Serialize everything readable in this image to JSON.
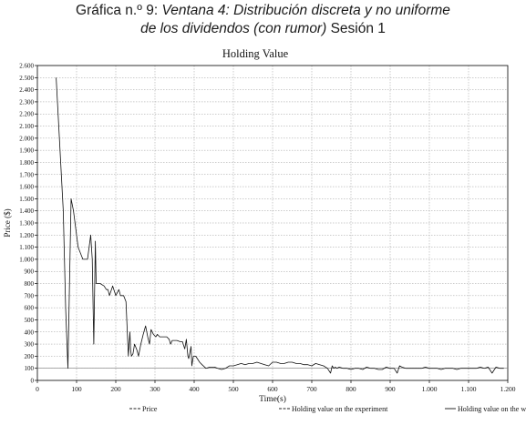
{
  "figure": {
    "line1_prefix": "Gráfica n.º 9: ",
    "line1_italic": "Ventana 4: Distribución discreta y no uniforme",
    "line2_italic": "de los dividendos (con rumor)",
    "line2_suffix": " Sesión 1"
  },
  "chart_data": {
    "type": "line",
    "title": "Holding Value",
    "xlabel": "Time(s)",
    "ylabel": "Price ($)",
    "xlim": [
      0,
      1200
    ],
    "ylim": [
      0,
      2600
    ],
    "grid": true,
    "legend_position": "bottom",
    "x_ticks": [
      0,
      100,
      200,
      300,
      400,
      500,
      600,
      700,
      800,
      900,
      1000,
      1100,
      1200
    ],
    "x_tick_labels": [
      "0",
      "100",
      "200",
      "300",
      "400",
      "500",
      "600",
      "700",
      "800",
      "900",
      "1.000",
      "1.100",
      "1.200"
    ],
    "y_ticks": [
      0,
      100,
      200,
      300,
      400,
      500,
      600,
      700,
      800,
      900,
      1000,
      1100,
      1200,
      1300,
      1400,
      1500,
      1600,
      1700,
      1800,
      1900,
      2000,
      2100,
      2200,
      2300,
      2400,
      2500,
      2600
    ],
    "y_tick_labels": [
      "0",
      "100",
      "200",
      "300",
      "400",
      "500",
      "600",
      "700",
      "800",
      "900",
      "1.000",
      "1.100",
      "1.200",
      "1.300",
      "1.400",
      "1.500",
      "1.600",
      "1.700",
      "1.800",
      "1.900",
      "2.000",
      "2.100",
      "2.200",
      "2.300",
      "2.400",
      "2.500",
      "2.600"
    ],
    "series": [
      {
        "name": "Price",
        "style": "dashed",
        "color": "#222222",
        "x": [],
        "y": []
      },
      {
        "name": "Holding value on the experiment",
        "style": "dashed",
        "color": "#222222",
        "x": [],
        "y": []
      },
      {
        "name": "Holding value on the window",
        "style": "solid",
        "color": "#111111",
        "x": [
          48,
          66,
          72,
          78,
          86,
          92,
          96,
          104,
          116,
          128,
          136,
          140,
          144,
          148,
          150,
          154,
          160,
          170,
          176,
          180,
          184,
          192,
          200,
          208,
          212,
          220,
          226,
          232,
          236,
          238,
          240,
          244,
          248,
          254,
          258,
          264,
          270,
          276,
          282,
          286,
          290,
          296,
          302,
          306,
          312,
          320,
          330,
          336,
          340,
          344,
          356,
          364,
          370,
          376,
          380,
          384,
          386,
          392,
          394,
          398,
          404,
          408,
          414,
          420,
          430,
          440,
          452,
          460,
          470,
          480,
          490,
          500,
          510,
          520,
          530,
          540,
          550,
          560,
          570,
          580,
          590,
          600,
          610,
          620,
          630,
          640,
          650,
          660,
          670,
          680,
          690,
          700,
          710,
          720,
          730,
          740,
          748,
          752,
          756,
          760,
          764,
          770,
          780,
          790,
          800,
          810,
          820,
          830,
          840,
          850,
          860,
          870,
          880,
          890,
          900,
          910,
          918,
          924,
          930,
          940,
          950,
          960,
          970,
          980,
          990,
          1000,
          1010,
          1020,
          1030,
          1040,
          1050,
          1060,
          1070,
          1080,
          1090,
          1100,
          1110,
          1120,
          1130,
          1140,
          1150,
          1160,
          1170,
          1180,
          1190
        ],
        "y": [
          2500,
          1400,
          600,
          100,
          1500,
          1400,
          1300,
          1100,
          1000,
          1000,
          1200,
          1000,
          300,
          1150,
          800,
          800,
          800,
          780,
          750,
          750,
          700,
          780,
          700,
          750,
          700,
          700,
          650,
          200,
          400,
          250,
          200,
          220,
          300,
          250,
          200,
          300,
          380,
          450,
          350,
          300,
          420,
          380,
          360,
          380,
          360,
          360,
          360,
          340,
          300,
          330,
          330,
          320,
          320,
          260,
          340,
          200,
          180,
          280,
          120,
          200,
          200,
          180,
          150,
          130,
          100,
          110,
          110,
          100,
          90,
          100,
          120,
          120,
          130,
          140,
          130,
          140,
          140,
          150,
          140,
          130,
          120,
          150,
          150,
          140,
          140,
          150,
          150,
          140,
          140,
          130,
          130,
          120,
          140,
          130,
          120,
          100,
          60,
          120,
          100,
          110,
          100,
          110,
          100,
          100,
          90,
          100,
          100,
          90,
          110,
          100,
          100,
          90,
          90,
          110,
          100,
          100,
          60,
          120,
          110,
          100,
          100,
          100,
          100,
          100,
          110,
          100,
          100,
          100,
          90,
          100,
          100,
          100,
          90,
          100,
          100,
          100,
          100,
          100,
          110,
          100,
          110,
          60,
          110,
          100,
          100
        ]
      }
    ],
    "reference_line": {
      "y": 100
    }
  }
}
